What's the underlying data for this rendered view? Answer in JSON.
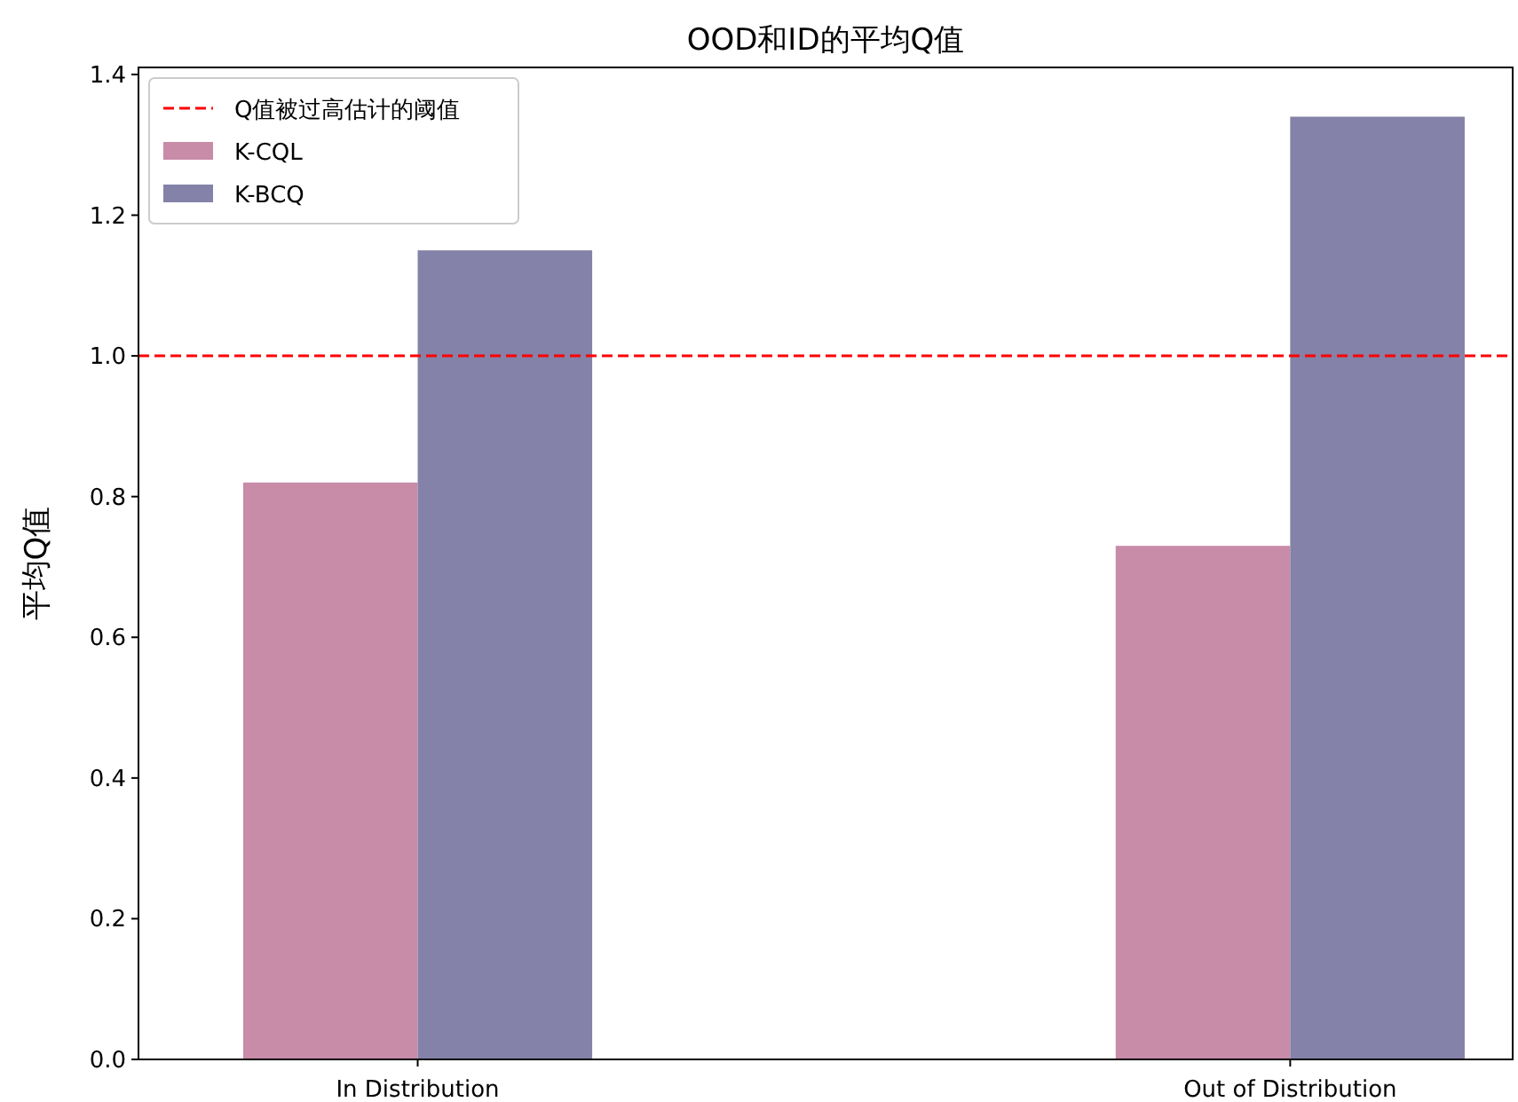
{
  "chart_data": {
    "type": "bar",
    "title": "OOD和ID的平均Q值",
    "ylabel": "平均Q值",
    "categories": [
      "In Distribution",
      "Out of Distribution"
    ],
    "series": [
      {
        "name": "K-CQL",
        "color": "#c88ba8",
        "values": [
          0.82,
          0.73
        ]
      },
      {
        "name": "K-BCQ",
        "color": "#8482a8",
        "values": [
          1.15,
          1.34
        ]
      }
    ],
    "ylim": [
      0,
      1.41
    ],
    "yticks": [
      {
        "value": 0,
        "label": "0.0"
      },
      {
        "value": 0.2,
        "label": "0.2"
      },
      {
        "value": 0.4,
        "label": "0.4"
      },
      {
        "value": 0.6,
        "label": "0.6"
      },
      {
        "value": 0.8,
        "label": "0.8"
      },
      {
        "value": 1,
        "label": "1.0"
      },
      {
        "value": 1.2,
        "label": "1.2"
      },
      {
        "value": 1.4,
        "label": "1.4"
      }
    ],
    "ref_lines": [
      {
        "axis": "y",
        "value": 1,
        "label": "Q值被过高估计的阈值",
        "color": "#ff0000",
        "line_style": "dashed"
      }
    ],
    "legend": "top left"
  }
}
